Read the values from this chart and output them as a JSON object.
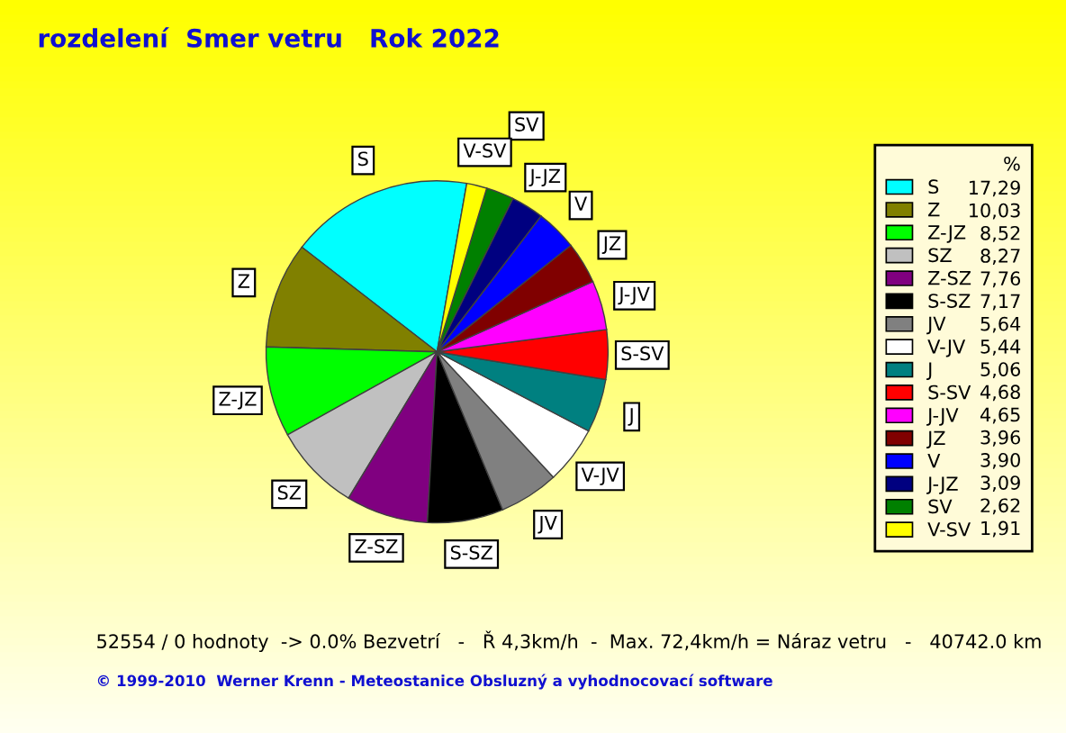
{
  "chart_data": {
    "type": "pie",
    "title": "rozdelení  Smer vetru   Rok 2022",
    "legend_title": "%",
    "legend": "right",
    "categories": [
      "S",
      "Z",
      "Z-JZ",
      "SZ",
      "Z-SZ",
      "S-SZ",
      "JV",
      "V-JV",
      "J",
      "S-SV",
      "J-JV",
      "JZ",
      "V",
      "J-JZ",
      "SV",
      "V-SV"
    ],
    "values": [
      17.29,
      10.03,
      8.52,
      8.27,
      7.76,
      7.17,
      5.64,
      5.44,
      5.06,
      4.68,
      4.65,
      3.96,
      3.9,
      3.09,
      2.62,
      1.91
    ],
    "value_labels": [
      "17,29",
      "10,03",
      "8,52",
      "8,27",
      "7,76",
      "7,17",
      "5,64",
      "5,44",
      "5,06",
      "4,68",
      "4,65",
      "3,96",
      "3,90",
      "3,09",
      "2,62",
      "1,91"
    ],
    "colors": [
      "#00ffff",
      "#808000",
      "#00ff00",
      "#c0c0c0",
      "#800080",
      "#000000",
      "#808080",
      "#ffffff",
      "#008080",
      "#ff0000",
      "#ff00ff",
      "#800000",
      "#0000ff",
      "#000080",
      "#008000",
      "#ffff00"
    ],
    "annotations": [
      "52554 / 0 hodnoty  -> 0.0% Bezvetrí   -   Ř 4,3km/h  -  Max. 72,4km/h = Náraz vetru   -   40742.0 km",
      "© 1999-2010  Werner Krenn - Meteostanice Obsluzný a vyhodnocovací software"
    ]
  }
}
